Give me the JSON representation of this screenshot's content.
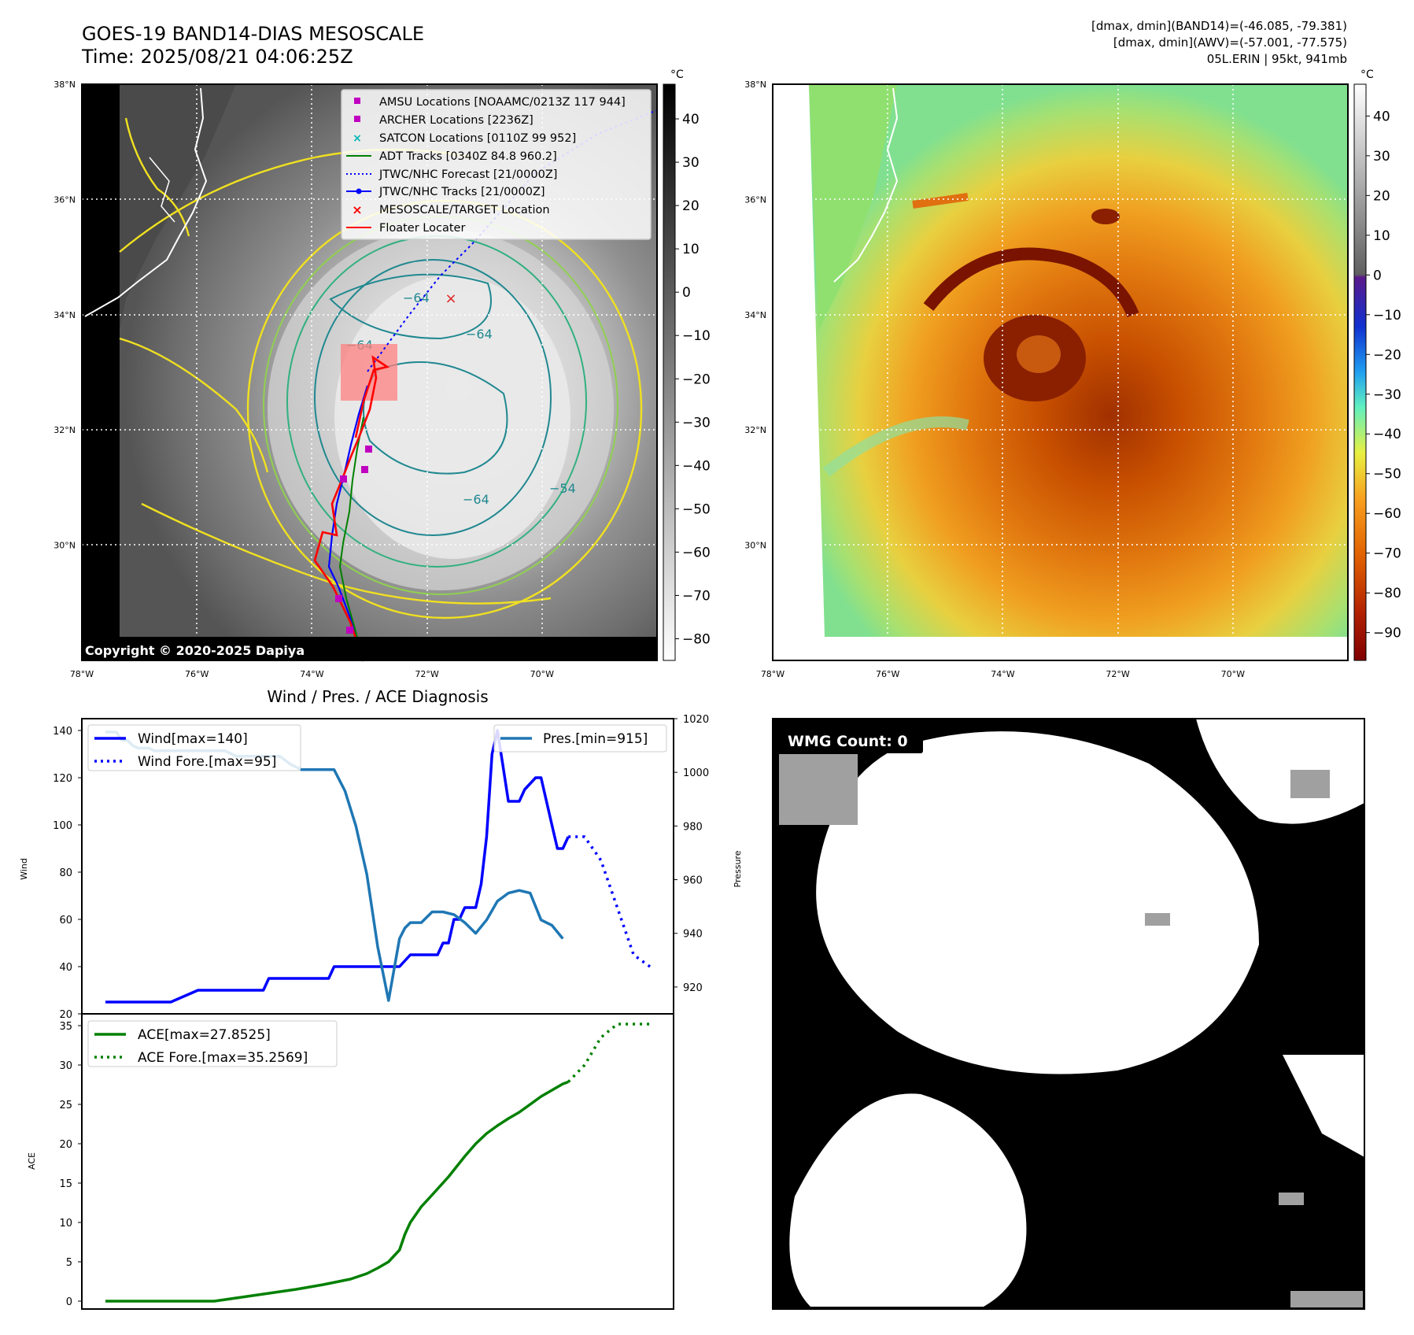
{
  "header": {
    "title_line1": "GOES-19 BAND14-DIAS MESOSCALE",
    "title_line2": "Time: 2025/08/21 04:06:25Z",
    "info_line1": "[dmax, dmin](BAND14)=(-46.085, -79.381)",
    "info_line2": "[dmax, dmin](AWV)=(-57.001, -77.575)",
    "info_line3": "05L.ERIN | 95kt, 941mb"
  },
  "map_axes": {
    "lat_labels": [
      "38°N",
      "36°N",
      "34°N",
      "32°N",
      "30°N"
    ],
    "lon_labels": [
      "78°W",
      "76°W",
      "74°W",
      "72°W",
      "70°W"
    ],
    "lat_values": [
      38,
      36,
      34,
      32,
      30
    ],
    "lon_values": [
      -78,
      -76,
      -74,
      -72,
      -70
    ],
    "lat_range": [
      28.0,
      38.0
    ],
    "lon_range": [
      -78.0,
      -68.0
    ],
    "grid": true
  },
  "ir_panel": {
    "copyright": "Copyright © 2020-2025 Dapiya",
    "colorbar": {
      "unit": "°C",
      "ticks": [
        "40",
        "30",
        "20",
        "10",
        "0",
        "−10",
        "−20",
        "−30",
        "−40",
        "−50",
        "−60",
        "−70",
        "−80"
      ],
      "range": [
        48,
        -85
      ]
    },
    "contour_labels": [
      "−64",
      "−64",
      "−64",
      "−64",
      "−54"
    ],
    "legend": [
      {
        "label": "AMSU Locations [NOAAMC/0213Z 117 944]",
        "marker": "square",
        "color": "#c000c0"
      },
      {
        "label": "ARCHER Locations [2236Z]",
        "marker": "square",
        "color": "#c000c0"
      },
      {
        "label": "SATCON Locations [0110Z 99 952]",
        "marker": "x",
        "color": "#00b4b4"
      },
      {
        "label": "ADT Tracks [0340Z 84.8 960.2]",
        "marker": "line",
        "color": "#008000"
      },
      {
        "label": "JTWC/NHC Forecast [21/0000Z]",
        "marker": "dotted",
        "color": "#0000ff"
      },
      {
        "label": "JTWC/NHC Tracks [21/0000Z]",
        "marker": "line-dot",
        "color": "#0000ff"
      },
      {
        "label": "MESOSCALE/TARGET Location",
        "marker": "x",
        "color": "#ff0000"
      },
      {
        "label": "Floater Locater",
        "marker": "line",
        "color": "#ff0000"
      }
    ]
  },
  "awv_panel": {
    "colorbar": {
      "unit": "°C",
      "ticks": [
        "40",
        "30",
        "20",
        "10",
        "0",
        "−10",
        "−20",
        "−30",
        "−40",
        "−50",
        "−60",
        "−70",
        "−80",
        "−90"
      ],
      "range": [
        48,
        -97
      ]
    }
  },
  "wmg_panel": {
    "count_label": "WMG Count: 0"
  },
  "colors": {
    "wind": "#0000ff",
    "pressure": "#1f77b4",
    "ace": "#008000",
    "floater": "#ff0000"
  },
  "chart_data": [
    {
      "type": "line",
      "title": "Wind / Pres. / ACE Diagnosis",
      "ylabel": "Wind",
      "ylabel_right": "Pressure",
      "ylim": [
        20,
        145
      ],
      "ylim_right": [
        910,
        1020
      ],
      "xlim": [
        0,
        100
      ],
      "yticks": [
        20,
        40,
        60,
        80,
        100,
        120,
        140
      ],
      "yticks_right": [
        920,
        940,
        960,
        980,
        1000,
        1020
      ],
      "legend_left": [
        "Wind[max=140]",
        "Wind Fore.[max=95]"
      ],
      "legend_right": [
        "Pres.[min=915]"
      ],
      "series": [
        {
          "name": "Wind[max=140]",
          "style": "solid",
          "color": "#0000ff",
          "axis": "left",
          "x": [
            0,
            11,
            12,
            17,
            18,
            19,
            20,
            29,
            30,
            36,
            37,
            40,
            41,
            42,
            43,
            44,
            45,
            46,
            47,
            48,
            49,
            50,
            51,
            52,
            53,
            54,
            56,
            61,
            62,
            63,
            64,
            65,
            66,
            67,
            68,
            69,
            70,
            71,
            72,
            73,
            74,
            75,
            76,
            77,
            79,
            80,
            81,
            82,
            83,
            84,
            85
          ],
          "y": [
            25,
            25,
            25,
            30,
            30,
            30,
            30,
            30,
            35,
            35,
            35,
            35,
            35,
            40,
            40,
            40,
            40,
            40,
            40,
            40,
            40,
            40,
            40,
            40,
            40,
            40,
            45,
            45,
            50,
            50,
            60,
            60,
            65,
            65,
            65,
            75,
            95,
            130,
            140,
            125,
            110,
            110,
            110,
            115,
            120,
            120,
            110,
            100,
            90,
            90,
            95
          ]
        },
        {
          "name": "Wind Fore.[max=95]",
          "style": "dotted",
          "color": "#0000ff",
          "axis": "left",
          "x": [
            85,
            88,
            91,
            94,
            97,
            100
          ],
          "y": [
            95,
            95,
            85,
            65,
            45,
            40
          ]
        },
        {
          "name": "Pres.[min=915]",
          "style": "solid",
          "color": "#1f77b4",
          "axis": "right",
          "x": [
            0,
            2,
            3,
            4,
            5,
            6,
            8,
            9,
            10,
            12,
            15,
            18,
            22,
            24,
            26,
            28,
            30,
            32,
            34,
            36,
            38,
            40,
            42,
            44,
            46,
            48,
            50,
            52,
            54,
            55,
            56,
            58,
            60,
            62,
            64,
            66,
            68,
            70,
            72,
            74,
            76,
            78,
            80,
            82,
            84
          ],
          "y": [
            1015,
            1015,
            1012,
            1012,
            1010,
            1009,
            1009,
            1008,
            1008,
            1008,
            1008,
            1008,
            1008,
            1006,
            1006,
            1006,
            1006,
            1006,
            1003,
            1001,
            1001,
            1001,
            1001,
            993,
            980,
            962,
            935,
            915,
            938,
            942,
            944,
            944,
            948,
            948,
            947,
            944,
            940,
            945,
            952,
            955,
            956,
            955,
            945,
            943,
            938
          ]
        }
      ]
    },
    {
      "type": "line",
      "ylabel": "ACE",
      "ylim": [
        -1,
        36.5
      ],
      "xlim": [
        0,
        100
      ],
      "yticks": [
        0,
        5,
        10,
        15,
        20,
        25,
        30,
        35
      ],
      "legend": [
        "ACE[max=27.8525]",
        "ACE Fore.[max=35.2569]"
      ],
      "series": [
        {
          "name": "ACE[max=27.8525]",
          "style": "solid",
          "color": "#008000",
          "x": [
            0,
            10,
            20,
            25,
            30,
            35,
            40,
            45,
            48,
            50,
            52,
            54,
            55,
            56,
            58,
            60,
            63,
            66,
            68,
            70,
            72,
            74,
            76,
            78,
            80,
            82,
            84,
            85
          ],
          "y": [
            0,
            0,
            0,
            0.5,
            1.0,
            1.5,
            2.1,
            2.8,
            3.5,
            4.2,
            5.0,
            6.5,
            8.5,
            10,
            12,
            13.5,
            15.8,
            18.4,
            20,
            21.3,
            22.3,
            23.2,
            24.0,
            25.0,
            26.0,
            26.8,
            27.6,
            27.85
          ]
        },
        {
          "name": "ACE Fore.[max=35.2569]",
          "style": "dotted",
          "color": "#008000",
          "x": [
            85,
            88,
            91,
            94,
            97,
            100
          ],
          "y": [
            27.85,
            30.0,
            33.5,
            35.2,
            35.2,
            35.2
          ]
        }
      ]
    }
  ]
}
